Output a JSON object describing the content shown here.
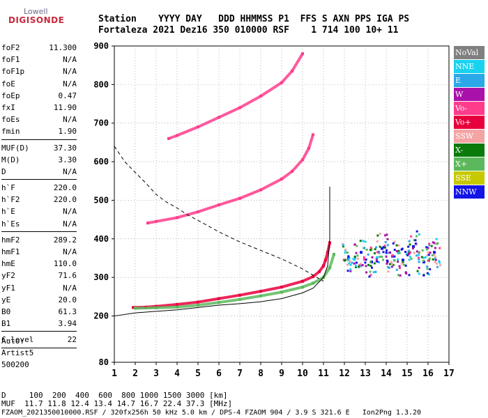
{
  "logo": {
    "line1": "Lowell",
    "line2": "DIGISONDE"
  },
  "header": {
    "row1": "Station    YYYY DAY   DDD HHMMSS P1  FFS S AXN PPS IGA PS",
    "row2": "Fortaleza 2021 Dez16 350 010000 RSF    1 714 100 10+ 11"
  },
  "params": [
    {
      "name": "foF2",
      "value": "11.300"
    },
    {
      "name": "foF1",
      "value": "N/A"
    },
    {
      "name": "foF1p",
      "value": "N/A"
    },
    {
      "name": "foE",
      "value": "N/A"
    },
    {
      "name": "foEp",
      "value": "0.47"
    },
    {
      "name": "fxI",
      "value": "11.90"
    },
    {
      "name": "foEs",
      "value": "N/A"
    },
    {
      "name": "fmin",
      "value": "1.90"
    },
    {
      "sep": true
    },
    {
      "name": "MUF(D)",
      "value": "37.30"
    },
    {
      "name": "M(D)",
      "value": "3.30"
    },
    {
      "name": "D",
      "value": "N/A"
    },
    {
      "sep": true
    },
    {
      "name": "h`F",
      "value": "220.0"
    },
    {
      "name": "h`F2",
      "value": "220.0"
    },
    {
      "name": "h`E",
      "value": "N/A"
    },
    {
      "name": "h`Es",
      "value": "N/A"
    },
    {
      "sep": true
    },
    {
      "name": "hmF2",
      "value": "289.2"
    },
    {
      "name": "hmF1",
      "value": "N/A"
    },
    {
      "name": "hmE",
      "value": "110.0"
    },
    {
      "name": "yF2",
      "value": "71.6"
    },
    {
      "name": "yF1",
      "value": "N/A"
    },
    {
      "name": "yE",
      "value": "20.0"
    },
    {
      "name": "B0",
      "value": "61.3"
    },
    {
      "name": "B1",
      "value": "3.94"
    },
    {
      "sep": true
    },
    {
      "name": "C-level",
      "value": "22"
    },
    {
      "sep": true
    }
  ],
  "auto": [
    "Auto:",
    "Artist5",
    "500200"
  ],
  "legend": [
    {
      "label": "NoVal",
      "color": "#808080"
    },
    {
      "label": "NNE",
      "color": "#19d2f0"
    },
    {
      "label": "E",
      "color": "#2aa8e8"
    },
    {
      "label": "W",
      "color": "#aa10aa"
    },
    {
      "label": "Vo-",
      "color": "#ff3c8c"
    },
    {
      "label": "Vo+",
      "color": "#e8003c"
    },
    {
      "label": "SSW",
      "color": "#f4a4a4"
    },
    {
      "label": "X-",
      "color": "#0a7a0a"
    },
    {
      "label": "X+",
      "color": "#5cb85c"
    },
    {
      "label": "SSE",
      "color": "#c8c800"
    },
    {
      "label": "NNW",
      "color": "#1414e6"
    }
  ],
  "footer": {
    "line1": "D     100  200  400  600  800 1000 1500 3000 [km]",
    "line2": "MUF  11.7 11.8 12.4 13.4 14.7 16.7 22.4 37.3 [MHz]",
    "line3": "FZAOM_2021350010000.RSF / 320fx256h 50 kHz 5.0 km / DPS-4 FZAOM 904 / 3.9 S 321.6 E   Ion2Png 1.3.20"
  },
  "chart_data": {
    "type": "scatter",
    "xlim": [
      1,
      17
    ],
    "ylim": [
      80,
      900
    ],
    "x_ticks": [
      1,
      2,
      3,
      4,
      5,
      6,
      7,
      8,
      9,
      10,
      11,
      12,
      13,
      14,
      15,
      16,
      17
    ],
    "y_ticks": [
      80,
      200,
      300,
      400,
      500,
      600,
      700,
      800,
      900
    ],
    "grid": true,
    "series": [
      {
        "name": "Vo+",
        "role": "o-trace F2 (1st hop)",
        "color": "#e8003c",
        "x": [
          1.9,
          2.5,
          3,
          4,
          5,
          6,
          7,
          8,
          9,
          10,
          10.5,
          10.8,
          11,
          11.1,
          11.2,
          11.3
        ],
        "y": [
          222,
          223,
          225,
          230,
          236,
          245,
          254,
          264,
          275,
          290,
          302,
          315,
          330,
          345,
          365,
          390
        ]
      },
      {
        "name": "X+",
        "role": "x-trace F2",
        "color": "#5cb85c",
        "x": [
          2,
          3,
          4,
          5,
          6,
          7,
          8,
          9,
          10,
          10.5,
          11,
          11.3,
          11.5
        ],
        "y": [
          220,
          221,
          223,
          228,
          235,
          243,
          252,
          262,
          275,
          285,
          300,
          325,
          360
        ]
      },
      {
        "name": "Vo-",
        "role": "2nd hop",
        "color": "#ff3c8c",
        "x": [
          2.6,
          3,
          4,
          5,
          6,
          7,
          8,
          9,
          9.5,
          10,
          10.3,
          10.5
        ],
        "y": [
          441,
          445,
          455,
          470,
          488,
          505,
          527,
          555,
          575,
          605,
          635,
          670
        ]
      },
      {
        "name": "Vo-",
        "role": "3rd hop",
        "color": "#ff3c8c",
        "x": [
          3.6,
          4,
          5,
          6,
          7,
          8,
          9,
          9.5,
          10
        ],
        "y": [
          660,
          668,
          690,
          715,
          740,
          770,
          805,
          835,
          880
        ]
      },
      {
        "name": "NNW",
        "role": "spread cloud",
        "color": "#1414e6",
        "x": [
          12.2,
          12.8,
          13.3,
          13.8,
          14.3,
          14.8,
          15.3,
          15.8,
          16.3
        ],
        "y": [
          350,
          365,
          340,
          375,
          355,
          345,
          380,
          340,
          365
        ]
      },
      {
        "name": "",
        "role": "model profile (solid)",
        "color": "#000000",
        "x": [
          1,
          2,
          3,
          4,
          5,
          6,
          7,
          8,
          9,
          10,
          10.5,
          11,
          11.2,
          11.3,
          11.3
        ],
        "y": [
          200,
          208,
          212,
          216,
          222,
          228,
          232,
          237,
          245,
          260,
          272,
          300,
          330,
          400,
          535
        ]
      },
      {
        "name": "",
        "role": "MUF distance curve (dashed)",
        "color": "#000000",
        "x": [
          1,
          1.5,
          2,
          2.5,
          3,
          3.5,
          4,
          4.5,
          5,
          6,
          7,
          8,
          9,
          10,
          11
        ],
        "y": [
          640,
          600,
          572,
          545,
          515,
          495,
          480,
          462,
          448,
          418,
          392,
          370,
          348,
          322,
          290
        ]
      }
    ]
  }
}
